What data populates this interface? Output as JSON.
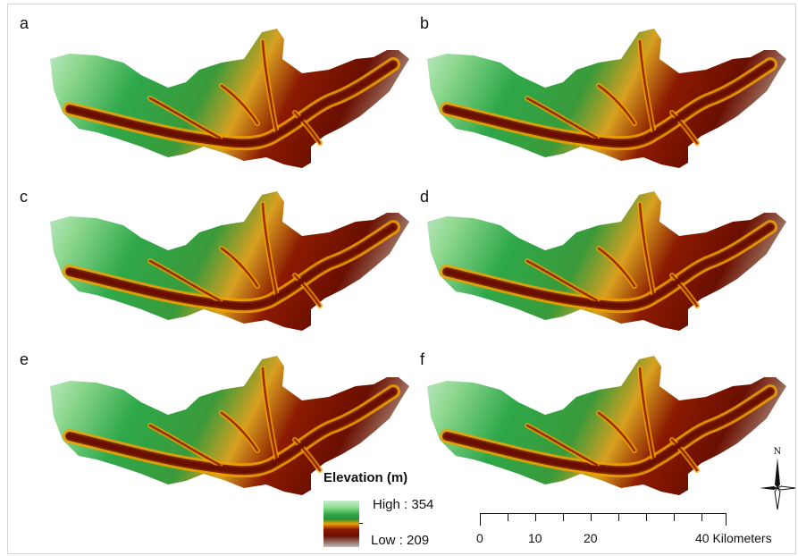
{
  "panels": [
    {
      "label": "a"
    },
    {
      "label": "b"
    },
    {
      "label": "c"
    },
    {
      "label": "d"
    },
    {
      "label": "e"
    },
    {
      "label": "f"
    }
  ],
  "legend": {
    "title": "Elevation (m)",
    "high_label": "High : 354",
    "low_label": "Low : 209",
    "high_value": 354,
    "low_value": 209,
    "colors": [
      "#c8ecd0",
      "#8fe08f",
      "#2ea84a",
      "#f0a000",
      "#8b1a00",
      "#6a0f00",
      "#bcbcbc"
    ]
  },
  "scale_bar": {
    "labels": [
      "0",
      "10",
      "20",
      "40 Kilometers"
    ],
    "unit": "Kilometers"
  },
  "north_arrow": {
    "label": "N",
    "icon": "north-arrow-icon"
  },
  "colors": {
    "high": "#c8ecd0",
    "mid_green": "#2ea84a",
    "orange": "#f0a000",
    "dark_red": "#6a0f00",
    "low": "#bcbcbc"
  }
}
